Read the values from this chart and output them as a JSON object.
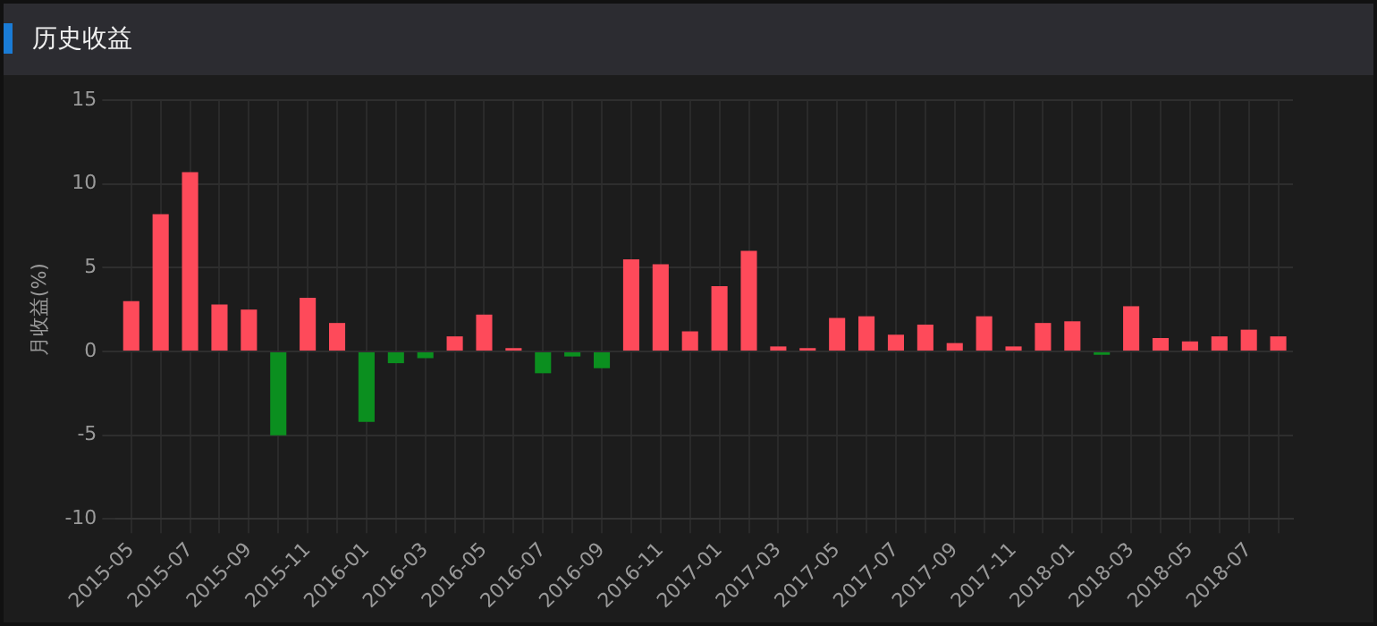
{
  "chart_data": {
    "type": "bar",
    "title": "历史收益",
    "ylabel": "月收益(%)",
    "categories": [
      "2015-05",
      null,
      "2015-07",
      null,
      "2015-09",
      null,
      "2015-11",
      null,
      "2016-01",
      null,
      "2016-03",
      null,
      "2016-05",
      null,
      "2016-07",
      null,
      "2016-09",
      null,
      "2016-11",
      null,
      "2017-01",
      null,
      "2017-03",
      null,
      "2017-05",
      null,
      "2017-07",
      null,
      "2017-09",
      null,
      "2017-11",
      null,
      "2018-01",
      null,
      "2018-03",
      null,
      "2018-05",
      null,
      "2018-07",
      null
    ],
    "values": [
      3.0,
      8.2,
      10.7,
      2.8,
      2.5,
      -5.0,
      3.2,
      1.7,
      -4.2,
      -0.7,
      -0.4,
      0.9,
      2.2,
      0.2,
      -1.3,
      -0.3,
      -1.0,
      5.5,
      5.2,
      1.2,
      3.9,
      6.0,
      0.3,
      0.2,
      2.0,
      2.1,
      1.0,
      1.6,
      0.5,
      2.1,
      0.3,
      1.7,
      1.8,
      -0.2,
      2.7,
      0.8,
      0.6,
      0.9,
      1.3,
      0.9
    ],
    "colors": [
      "#fe4a5a",
      "#fe4a5a",
      "#fe4a5a",
      "#fe4a5a",
      "#fe4a5a",
      "#0b8f1f",
      "#fe4a5a",
      "#fe4a5a",
      "#0b8f1f",
      "#0b8f1f",
      "#0b8f1f",
      "#fe4a5a",
      "#fe4a5a",
      "#fe4a5a",
      "#0b8f1f",
      "#0b8f1f",
      "#0b8f1f",
      "#fe4a5a",
      "#fe4a5a",
      "#fe4a5a",
      "#fe4a5a",
      "#fe4a5a",
      "#fe4a5a",
      "#fe4a5a",
      "#fe4a5a",
      "#fe4a5a",
      "#fe4a5a",
      "#fe4a5a",
      "#fe4a5a",
      "#fe4a5a",
      "#fe4a5a",
      "#fe4a5a",
      "#fe4a5a",
      "#0b8f1f",
      "#fe4a5a",
      "#fe4a5a",
      "#fe4a5a",
      "#fe4a5a",
      "#fe4a5a",
      "#fe4a5a"
    ],
    "ylim": [
      -10,
      15
    ],
    "yticks": [
      -10,
      -5,
      0,
      5,
      10,
      15
    ],
    "grid": true
  }
}
